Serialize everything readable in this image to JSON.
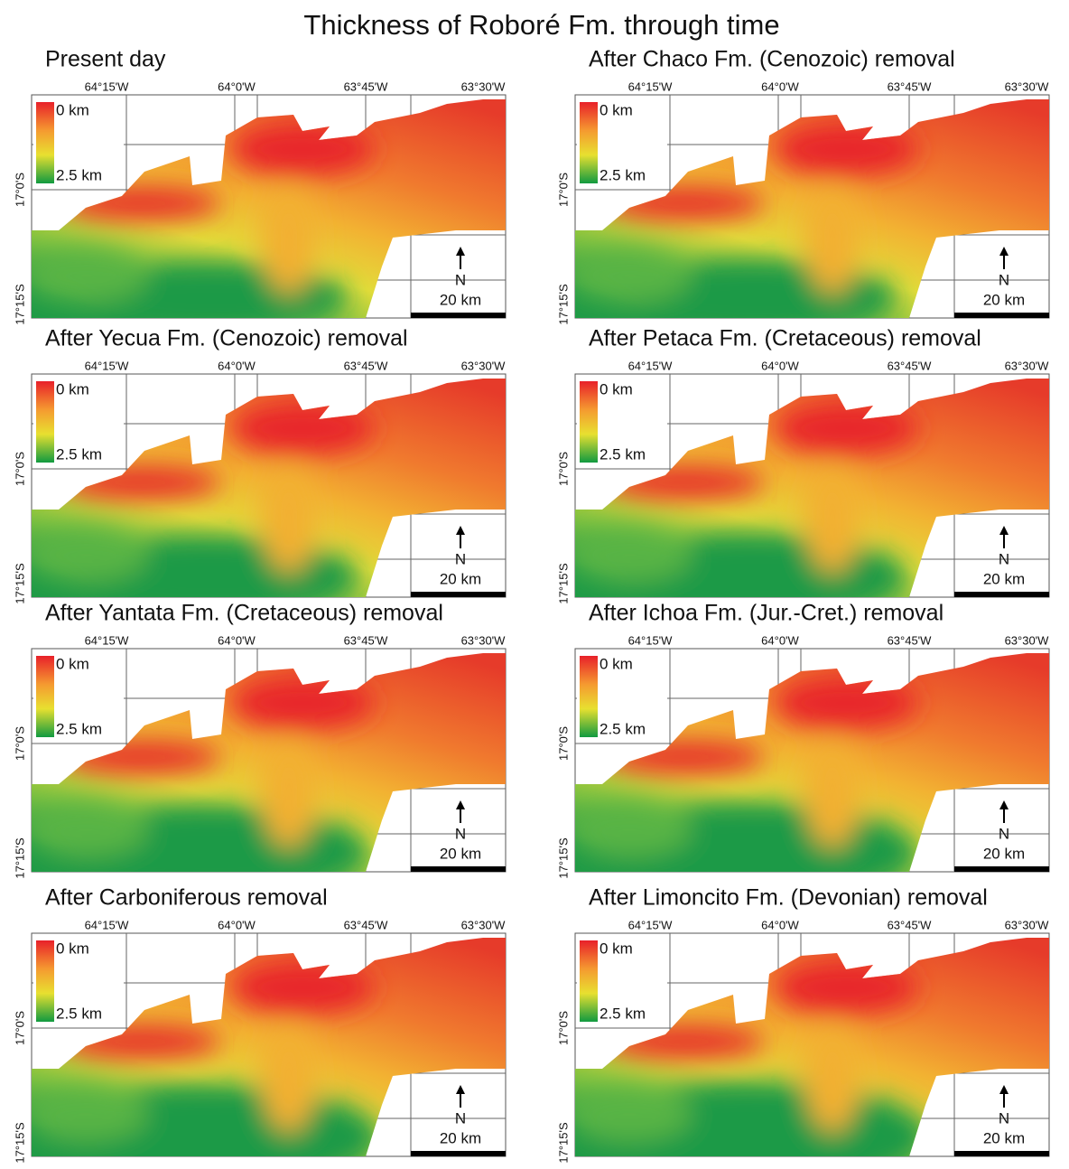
{
  "title": "Thickness of Roboré Fm. through time",
  "panels": [
    {
      "title": "Present day"
    },
    {
      "title": "After Chaco Fm. (Cenozoic) removal"
    },
    {
      "title": "After Yecua Fm. (Cenozoic) removal"
    },
    {
      "title": "After Petaca Fm. (Cretaceous) removal"
    },
    {
      "title": "After Yantata Fm. (Cretaceous) removal"
    },
    {
      "title": "After Ichoa Fm. (Jur.-Cret.) removal"
    },
    {
      "title": "After Carboniferous removal"
    },
    {
      "title": "After Limoncito Fm. (Devonian) removal"
    }
  ],
  "lon_labels": [
    "64°15'W",
    "64°0'W",
    "63°45'W",
    "63°30'W"
  ],
  "lat_labels": [
    "17°0'S",
    "17°15'S"
  ],
  "legend": {
    "top": "0 km",
    "bottom": "2.5 km"
  },
  "north": "N",
  "scale": "20 km"
}
